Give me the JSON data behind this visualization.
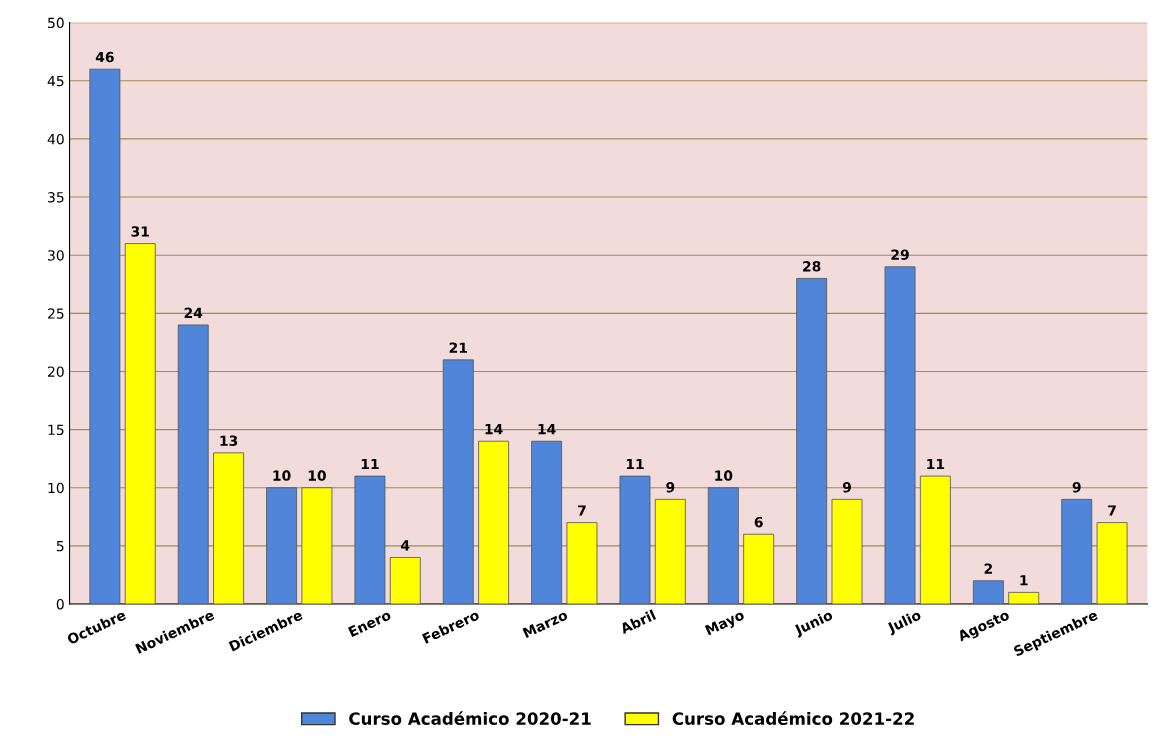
{
  "chart_data": {
    "type": "bar",
    "categories": [
      "Octubre",
      "Noviembre",
      "Diciembre",
      "Enero",
      "Febrero",
      "Marzo",
      "Abril",
      "Mayo",
      "Junio",
      "Julio",
      "Agosto",
      "Septiembre"
    ],
    "series": [
      {
        "name": "Curso Académico 2020-21",
        "color": "#4f86d9",
        "values": [
          46,
          24,
          10,
          11,
          21,
          14,
          11,
          10,
          28,
          29,
          2,
          9
        ]
      },
      {
        "name": "Curso Académico 2021-22",
        "color": "#ffff00",
        "values": [
          31,
          13,
          10,
          4,
          14,
          7,
          9,
          6,
          9,
          11,
          1,
          7
        ]
      }
    ],
    "ylim": [
      0,
      50
    ],
    "yticks": [
      0,
      5,
      10,
      15,
      20,
      25,
      30,
      35,
      40,
      45,
      50
    ],
    "grid": "y",
    "legend": "bottom",
    "data_labels": true
  }
}
